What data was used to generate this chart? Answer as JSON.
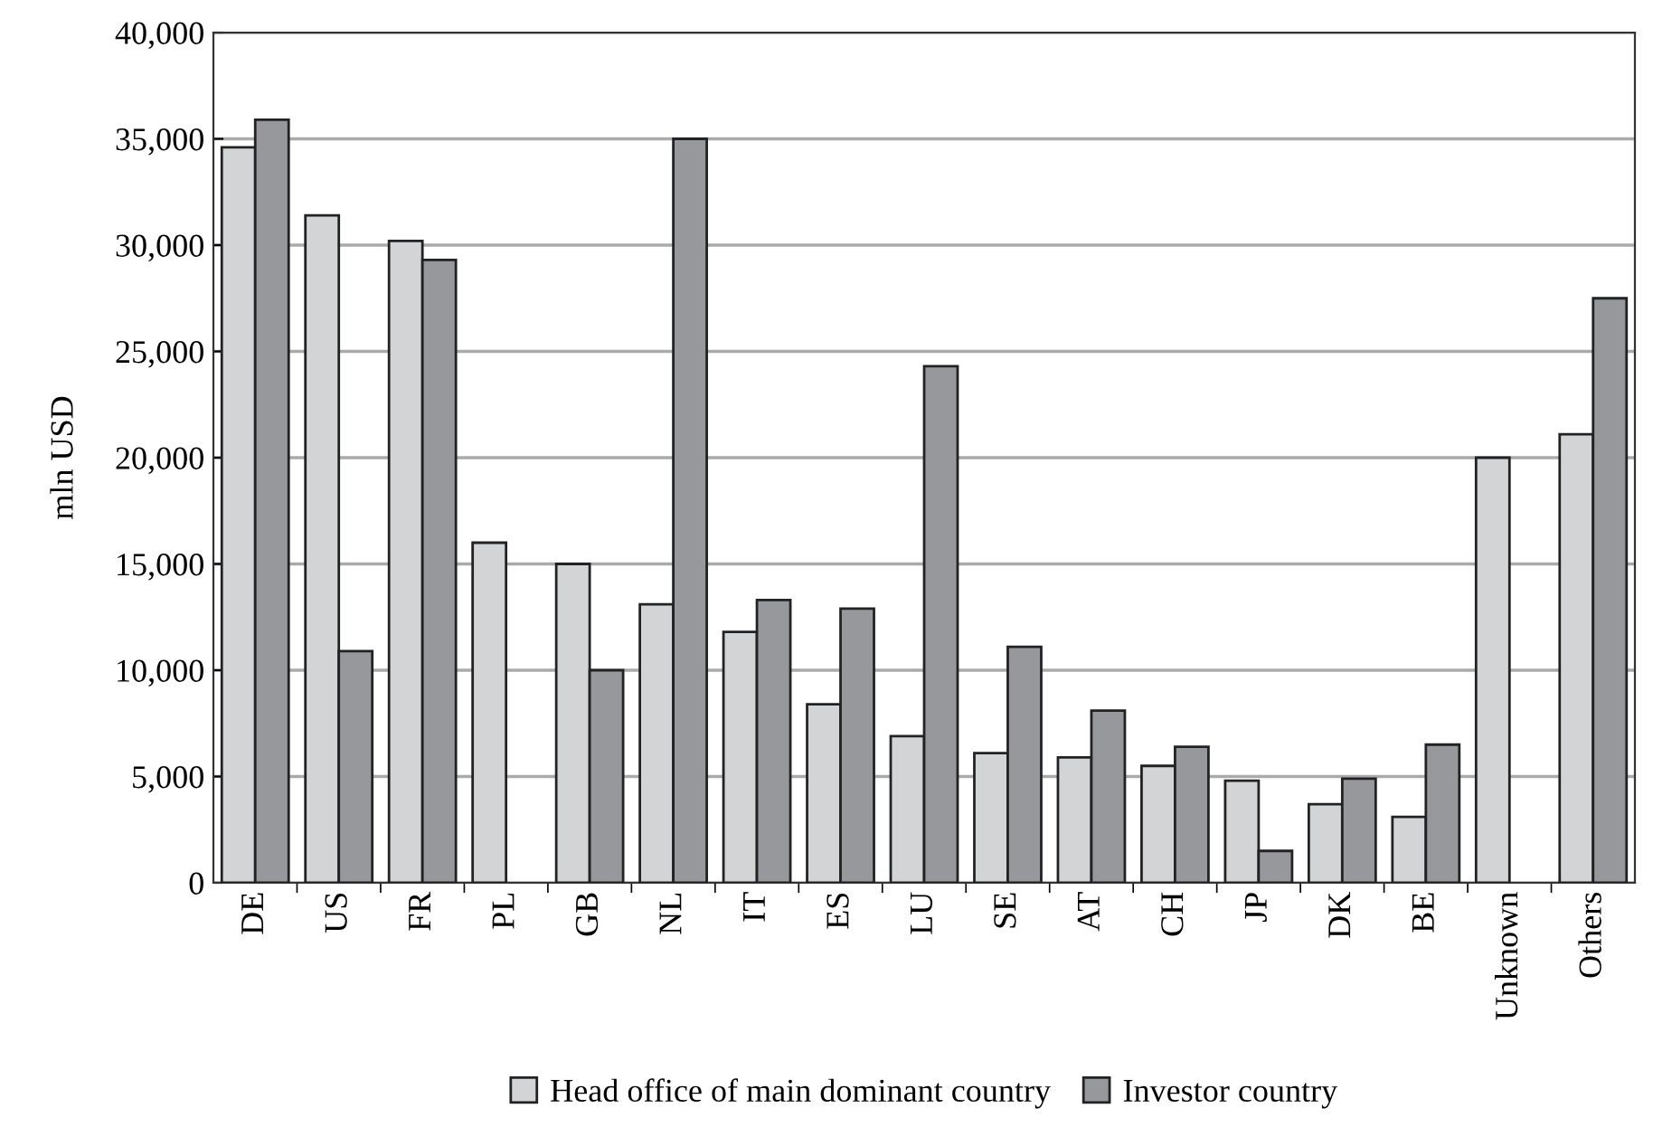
{
  "chart_data": {
    "type": "bar",
    "ylabel": "mln USD",
    "categories": [
      "DE",
      "US",
      "FR",
      "PL",
      "GB",
      "NL",
      "IT",
      "ES",
      "LU",
      "SE",
      "AT",
      "CH",
      "JP",
      "DK",
      "BE",
      "Unknown",
      "Others"
    ],
    "series": [
      {
        "name": "Head office of main dominant country",
        "color": "#d3d4d6",
        "values": [
          34600,
          31400,
          30200,
          16000,
          15000,
          13100,
          11800,
          8400,
          6900,
          6100,
          5900,
          5500,
          4800,
          3700,
          3100,
          20000,
          21100
        ]
      },
      {
        "name": "Investor country",
        "color": "#97989c",
        "values": [
          35900,
          10900,
          29300,
          null,
          10000,
          35000,
          13300,
          12900,
          24300,
          11100,
          8100,
          6400,
          1500,
          4900,
          6500,
          null,
          27500
        ]
      }
    ],
    "ylim": [
      0,
      40000
    ],
    "yticks": [
      {
        "value": 0,
        "label": "0"
      },
      {
        "value": 5000,
        "label": "5,000"
      },
      {
        "value": 10000,
        "label": "10,000"
      },
      {
        "value": 15000,
        "label": "15,000"
      },
      {
        "value": 20000,
        "label": "20,000"
      },
      {
        "value": 25000,
        "label": "25,000"
      },
      {
        "value": 30000,
        "label": "30,000"
      },
      {
        "value": 35000,
        "label": "35,000"
      },
      {
        "value": 40000,
        "label": "40,000"
      }
    ],
    "grid": "y",
    "legend": "bottom"
  }
}
